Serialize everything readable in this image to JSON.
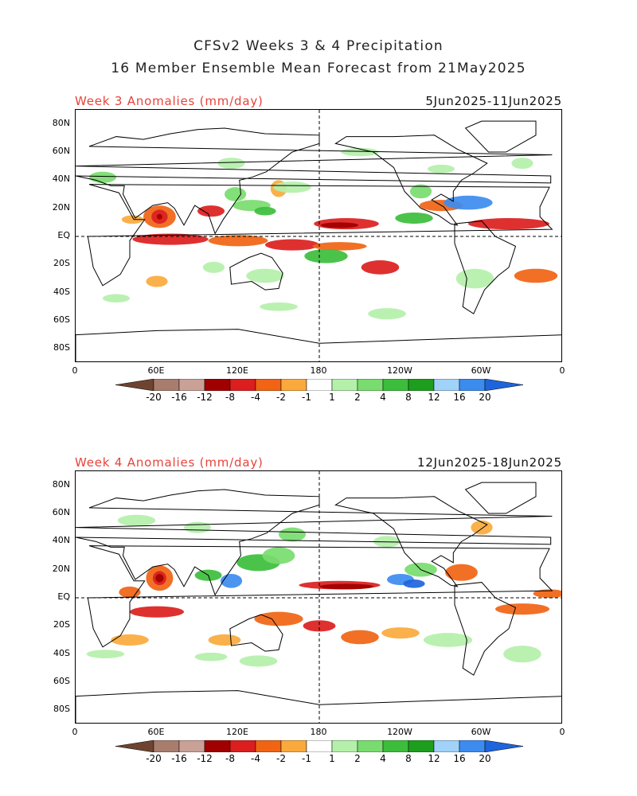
{
  "title_line1": "CFSv2 Weeks 3 & 4 Precipitation",
  "title_line2": "16 Member Ensemble Mean Forecast from 21May2025",
  "panels": [
    {
      "label": "Week 3 Anomalies (mm/day)",
      "dates": "5Jun2025-11Jun2025"
    },
    {
      "label": "Week 4 Anomalies (mm/day)",
      "dates": "12Jun2025-18Jun2025"
    }
  ],
  "lat_labels": [
    "80N",
    "60N",
    "40N",
    "20N",
    "EQ",
    "20S",
    "40S",
    "60S",
    "80S"
  ],
  "lon_labels": [
    "0",
    "60E",
    "120E",
    "180",
    "120W",
    "60W",
    "0"
  ],
  "colorbar": {
    "labels": [
      "-20",
      "-16",
      "-12",
      "-8",
      "-4",
      "-2",
      "-1",
      "1",
      "2",
      "4",
      "8",
      "12",
      "16",
      "20"
    ],
    "colors": [
      "#6e4430",
      "#a87d6e",
      "#c9a196",
      "#a00000",
      "#dc1e1e",
      "#f06414",
      "#faaa3c",
      "#ffffff",
      "#b4f0aa",
      "#78dc6e",
      "#3cbe3c",
      "#1e9e1e",
      "#a0d2fa",
      "#3c8cf0",
      "#1e64dc"
    ]
  }
}
